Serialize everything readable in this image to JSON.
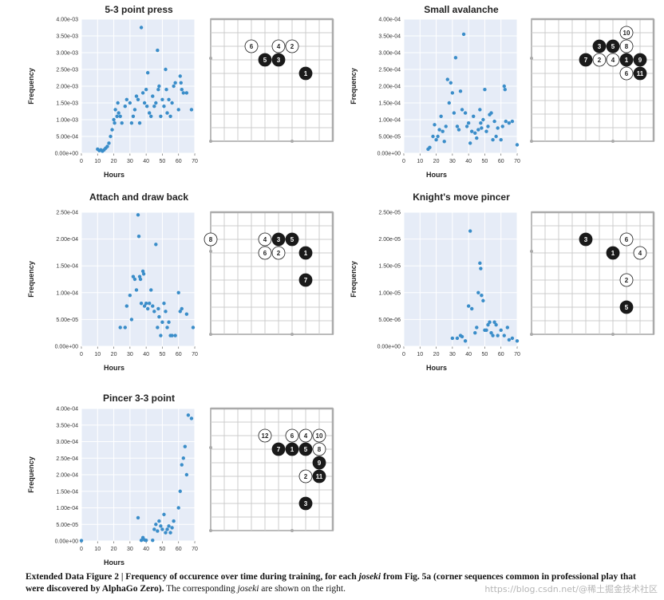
{
  "chart_data": [
    {
      "type": "scatter",
      "title": "5-3 point press",
      "xlabel": "Hours",
      "ylabel": "Frequency",
      "xlim": [
        0,
        70
      ],
      "ylim": [
        0,
        0.004
      ],
      "xticks": [
        "0",
        "10",
        "20",
        "30",
        "40",
        "50",
        "60",
        "70"
      ],
      "yticks": [
        "0.00e+00",
        "5.00e-04",
        "1.00e-03",
        "1.50e-03",
        "2.00e-03",
        "2.50e-03",
        "3.00e-03",
        "3.50e-03",
        "4.00e-03"
      ],
      "points": [
        [
          10,
          0.00012
        ],
        [
          11,
          8e-05
        ],
        [
          12,
          0.0001
        ],
        [
          13,
          6e-05
        ],
        [
          14,
          0.0001
        ],
        [
          15,
          0.00015
        ],
        [
          16,
          0.0002
        ],
        [
          17,
          0.0003
        ],
        [
          18,
          0.0005
        ],
        [
          19,
          0.0007
        ],
        [
          20,
          0.001
        ],
        [
          20.5,
          0.0009
        ],
        [
          21,
          0.0013
        ],
        [
          22,
          0.0011
        ],
        [
          22.5,
          0.0015
        ],
        [
          23,
          0.0012
        ],
        [
          24,
          0.0011
        ],
        [
          25,
          0.0009
        ],
        [
          27,
          0.0014
        ],
        [
          28,
          0.0016
        ],
        [
          30,
          0.0015
        ],
        [
          31,
          0.0009
        ],
        [
          32,
          0.0011
        ],
        [
          33,
          0.0013
        ],
        [
          34,
          0.0017
        ],
        [
          35,
          0.0016
        ],
        [
          36,
          0.0009
        ],
        [
          37,
          0.00375
        ],
        [
          38,
          0.0018
        ],
        [
          39,
          0.0015
        ],
        [
          40,
          0.0019
        ],
        [
          40.5,
          0.0014
        ],
        [
          41,
          0.0024
        ],
        [
          42,
          0.0012
        ],
        [
          43,
          0.0011
        ],
        [
          44,
          0.0017
        ],
        [
          45,
          0.0014
        ],
        [
          46,
          0.0015
        ],
        [
          47,
          0.00307
        ],
        [
          47.5,
          0.0019
        ],
        [
          48,
          0.002
        ],
        [
          49,
          0.0011
        ],
        [
          50,
          0.0016
        ],
        [
          51,
          0.0014
        ],
        [
          52,
          0.0025
        ],
        [
          52.5,
          0.0019
        ],
        [
          53,
          0.0012
        ],
        [
          54,
          0.0016
        ],
        [
          55,
          0.0011
        ],
        [
          56,
          0.0015
        ],
        [
          57,
          0.002
        ],
        [
          58,
          0.0021
        ],
        [
          60,
          0.0013
        ],
        [
          61,
          0.0023
        ],
        [
          61.5,
          0.0021
        ],
        [
          62,
          0.0019
        ],
        [
          63,
          0.0018
        ],
        [
          65,
          0.0018
        ],
        [
          68,
          0.0013
        ]
      ]
    },
    {
      "type": "scatter",
      "title": "Small avalanche",
      "xlabel": "Hours",
      "ylabel": "Frequency",
      "xlim": [
        0,
        70
      ],
      "ylim": [
        0,
        0.0004
      ],
      "xticks": [
        "0",
        "10",
        "20",
        "30",
        "40",
        "50",
        "60",
        "70"
      ],
      "yticks": [
        "0.00e+00",
        "5.00e-05",
        "1.00e-04",
        "1.50e-04",
        "2.00e-04",
        "2.50e-04",
        "3.00e-04",
        "3.50e-04",
        "4.00e-04"
      ],
      "points": [
        [
          15,
          1.2e-05
        ],
        [
          16,
          1.7e-05
        ],
        [
          18,
          5e-05
        ],
        [
          19,
          8.5e-05
        ],
        [
          20,
          4e-05
        ],
        [
          21,
          5e-05
        ],
        [
          22,
          7e-05
        ],
        [
          23,
          0.00011
        ],
        [
          24,
          6.5e-05
        ],
        [
          25,
          3.5e-05
        ],
        [
          26,
          8e-05
        ],
        [
          27,
          0.00022
        ],
        [
          28,
          0.00015
        ],
        [
          29,
          0.00021
        ],
        [
          30,
          0.00018
        ],
        [
          31,
          0.00012
        ],
        [
          32,
          0.000285
        ],
        [
          33,
          8e-05
        ],
        [
          34,
          7e-05
        ],
        [
          35,
          0.000185
        ],
        [
          36,
          0.00013
        ],
        [
          37,
          0.000355
        ],
        [
          38,
          0.00012
        ],
        [
          39,
          8e-05
        ],
        [
          40,
          9e-05
        ],
        [
          41,
          3e-05
        ],
        [
          42,
          6.5e-05
        ],
        [
          43,
          0.00011
        ],
        [
          44,
          6e-05
        ],
        [
          45,
          4.5e-05
        ],
        [
          46,
          7e-05
        ],
        [
          47,
          0.00013
        ],
        [
          47.5,
          9e-05
        ],
        [
          48,
          7.5e-05
        ],
        [
          49,
          0.0001
        ],
        [
          50,
          0.00019
        ],
        [
          51,
          6.5e-05
        ],
        [
          52,
          8e-05
        ],
        [
          53,
          0.000115
        ],
        [
          54,
          0.00012
        ],
        [
          55,
          4e-05
        ],
        [
          56,
          9.5e-05
        ],
        [
          57,
          5e-05
        ],
        [
          58,
          7.5e-05
        ],
        [
          60,
          4e-05
        ],
        [
          61,
          8e-05
        ],
        [
          62,
          0.0002
        ],
        [
          62.5,
          0.00019
        ],
        [
          63,
          9.5e-05
        ],
        [
          65,
          9e-05
        ],
        [
          67,
          9.5e-05
        ],
        [
          70,
          2.5e-05
        ]
      ]
    },
    {
      "type": "scatter",
      "title": "Attach and draw back",
      "xlabel": "Hours",
      "ylabel": "Frequency",
      "xlim": [
        0,
        70
      ],
      "ylim": [
        0,
        0.00025
      ],
      "xticks": [
        "0",
        "10",
        "20",
        "30",
        "40",
        "50",
        "60",
        "70"
      ],
      "yticks": [
        "0.00e+00",
        "5.00e-05",
        "1.00e-04",
        "1.50e-04",
        "2.00e-04",
        "2.50e-04"
      ],
      "points": [
        [
          24,
          3.5e-05
        ],
        [
          27,
          3.5e-05
        ],
        [
          28,
          7.5e-05
        ],
        [
          30,
          9.5e-05
        ],
        [
          31,
          5e-05
        ],
        [
          32,
          0.00013
        ],
        [
          33,
          0.000125
        ],
        [
          34,
          0.000105
        ],
        [
          35,
          0.000245
        ],
        [
          35.5,
          0.000205
        ],
        [
          36,
          0.00013
        ],
        [
          36.5,
          0.000125
        ],
        [
          37,
          8e-05
        ],
        [
          38,
          0.00014
        ],
        [
          38.5,
          0.000135
        ],
        [
          39,
          7.5e-05
        ],
        [
          40,
          8e-05
        ],
        [
          41,
          7e-05
        ],
        [
          42,
          8e-05
        ],
        [
          43,
          0.000105
        ],
        [
          44,
          7.5e-05
        ],
        [
          45,
          6.5e-05
        ],
        [
          46,
          0.00019
        ],
        [
          47,
          3.5e-05
        ],
        [
          47.5,
          7e-05
        ],
        [
          48,
          5.5e-05
        ],
        [
          49,
          2e-05
        ],
        [
          50,
          4.5e-05
        ],
        [
          51,
          8e-05
        ],
        [
          52,
          6.5e-05
        ],
        [
          53,
          3.5e-05
        ],
        [
          54,
          4.5e-05
        ],
        [
          55,
          2e-05
        ],
        [
          56,
          2e-05
        ],
        [
          58,
          2e-05
        ],
        [
          60,
          0.0001
        ],
        [
          61,
          6.5e-05
        ],
        [
          62,
          7e-05
        ],
        [
          65,
          6e-05
        ],
        [
          69,
          3.5e-05
        ]
      ]
    },
    {
      "type": "scatter",
      "title": "Knight's move pincer",
      "xlabel": "Hours",
      "ylabel": "Frequency",
      "xlim": [
        0,
        70
      ],
      "ylim": [
        0,
        2.5e-05
      ],
      "xticks": [
        "0",
        "10",
        "20",
        "30",
        "40",
        "50",
        "60",
        "70"
      ],
      "yticks": [
        "0.00e+00",
        "5.00e-06",
        "1.00e-05",
        "1.50e-05",
        "2.00e-05",
        "2.50e-05"
      ],
      "points": [
        [
          30,
          1.5e-06
        ],
        [
          33,
          1.5e-06
        ],
        [
          35,
          2e-06
        ],
        [
          36,
          1.8e-06
        ],
        [
          38,
          1e-06
        ],
        [
          40,
          7.5e-06
        ],
        [
          41,
          2.15e-05
        ],
        [
          42,
          7e-06
        ],
        [
          44,
          2.5e-06
        ],
        [
          45,
          3.5e-06
        ],
        [
          46,
          1e-05
        ],
        [
          47,
          1.55e-05
        ],
        [
          47.5,
          1.45e-05
        ],
        [
          48,
          9.5e-06
        ],
        [
          49,
          8.5e-06
        ],
        [
          50,
          3e-06
        ],
        [
          51,
          3e-06
        ],
        [
          52,
          4e-06
        ],
        [
          53,
          4.5e-06
        ],
        [
          54,
          2.5e-06
        ],
        [
          55,
          2e-06
        ],
        [
          56,
          4.5e-06
        ],
        [
          57,
          4e-06
        ],
        [
          58,
          2e-06
        ],
        [
          60,
          3e-06
        ],
        [
          62,
          2e-06
        ],
        [
          64,
          3.5e-06
        ],
        [
          65,
          1.2e-06
        ],
        [
          67,
          1.5e-06
        ],
        [
          70,
          1e-06
        ]
      ]
    },
    {
      "type": "scatter",
      "title": "Pincer 3-3 point",
      "xlabel": "Hours",
      "ylabel": "Frequency",
      "xlim": [
        0,
        70
      ],
      "ylim": [
        0,
        0.0004
      ],
      "xticks": [
        "0",
        "10",
        "20",
        "30",
        "40",
        "50",
        "60",
        "70"
      ],
      "yticks": [
        "0.00e+00",
        "5.00e-05",
        "1.00e-04",
        "1.50e-04",
        "2.00e-04",
        "2.50e-04",
        "3.00e-04",
        "3.50e-04",
        "4.00e-04"
      ],
      "points": [
        [
          0,
          1e-06
        ],
        [
          35,
          7e-05
        ],
        [
          37,
          2e-06
        ],
        [
          38,
          1e-05
        ],
        [
          39,
          3e-06
        ],
        [
          40,
          2e-06
        ],
        [
          44,
          2e-06
        ],
        [
          45,
          3.5e-05
        ],
        [
          46,
          5e-05
        ],
        [
          47,
          3e-05
        ],
        [
          48,
          6e-05
        ],
        [
          49,
          4.5e-05
        ],
        [
          50,
          3.5e-05
        ],
        [
          51,
          8e-05
        ],
        [
          52,
          2.5e-05
        ],
        [
          53,
          3.5e-05
        ],
        [
          54,
          4.5e-05
        ],
        [
          55,
          2.5e-05
        ],
        [
          56,
          4e-05
        ],
        [
          57,
          6e-05
        ],
        [
          60,
          0.0001
        ],
        [
          61,
          0.00015
        ],
        [
          62,
          0.00023
        ],
        [
          63,
          0.00025
        ],
        [
          64,
          0.000285
        ],
        [
          65,
          0.0002
        ],
        [
          66,
          0.00038
        ],
        [
          68,
          0.00037
        ]
      ]
    }
  ],
  "boards": [
    {
      "name": "5-3 point press",
      "stones": [
        {
          "col": 3,
          "row": 2,
          "color": "white",
          "label": "6"
        },
        {
          "col": 5,
          "row": 2,
          "color": "white",
          "label": "4"
        },
        {
          "col": 6,
          "row": 2,
          "color": "white",
          "label": "2"
        },
        {
          "col": 4,
          "row": 3,
          "color": "black",
          "label": "5"
        },
        {
          "col": 5,
          "row": 3,
          "color": "black",
          "label": "3"
        },
        {
          "col": 7,
          "row": 4,
          "color": "black",
          "label": "1"
        }
      ]
    },
    {
      "name": "Small avalanche",
      "stones": [
        {
          "col": 7,
          "row": 1,
          "color": "white",
          "label": "10"
        },
        {
          "col": 5,
          "row": 2,
          "color": "black",
          "label": "3"
        },
        {
          "col": 6,
          "row": 2,
          "color": "black",
          "label": "5"
        },
        {
          "col": 7,
          "row": 2,
          "color": "white",
          "label": "8"
        },
        {
          "col": 4,
          "row": 3,
          "color": "black",
          "label": "7"
        },
        {
          "col": 5,
          "row": 3,
          "color": "white",
          "label": "2"
        },
        {
          "col": 6,
          "row": 3,
          "color": "white",
          "label": "4"
        },
        {
          "col": 7,
          "row": 3,
          "color": "black",
          "label": "1"
        },
        {
          "col": 8,
          "row": 3,
          "color": "black",
          "label": "9"
        },
        {
          "col": 7,
          "row": 4,
          "color": "white",
          "label": "6"
        },
        {
          "col": 8,
          "row": 4,
          "color": "black",
          "label": "11"
        }
      ]
    },
    {
      "name": "Attach and draw back",
      "stones": [
        {
          "col": 0,
          "row": 2,
          "color": "white",
          "label": "8"
        },
        {
          "col": 4,
          "row": 2,
          "color": "white",
          "label": "4"
        },
        {
          "col": 5,
          "row": 2,
          "color": "black",
          "label": "3"
        },
        {
          "col": 6,
          "row": 2,
          "color": "black",
          "label": "5"
        },
        {
          "col": 4,
          "row": 3,
          "color": "white",
          "label": "6"
        },
        {
          "col": 5,
          "row": 3,
          "color": "white",
          "label": "2"
        },
        {
          "col": 7,
          "row": 3,
          "color": "black",
          "label": "1"
        },
        {
          "col": 7,
          "row": 5,
          "color": "black",
          "label": "7"
        }
      ]
    },
    {
      "name": "Knight's move pincer",
      "stones": [
        {
          "col": 4,
          "row": 2,
          "color": "black",
          "label": "3"
        },
        {
          "col": 7,
          "row": 2,
          "color": "white",
          "label": "6"
        },
        {
          "col": 6,
          "row": 3,
          "color": "black",
          "label": "1"
        },
        {
          "col": 8,
          "row": 3,
          "color": "white",
          "label": "4"
        },
        {
          "col": 7,
          "row": 5,
          "color": "white",
          "label": "2"
        },
        {
          "col": 7,
          "row": 7,
          "color": "black",
          "label": "5"
        }
      ]
    },
    {
      "name": "Pincer 3-3 point",
      "stones": [
        {
          "col": 4,
          "row": 2,
          "color": "white",
          "label": "12"
        },
        {
          "col": 6,
          "row": 2,
          "color": "white",
          "label": "6"
        },
        {
          "col": 7,
          "row": 2,
          "color": "white",
          "label": "4"
        },
        {
          "col": 8,
          "row": 2,
          "color": "white",
          "label": "10"
        },
        {
          "col": 5,
          "row": 3,
          "color": "black",
          "label": "7"
        },
        {
          "col": 6,
          "row": 3,
          "color": "black",
          "label": "1"
        },
        {
          "col": 7,
          "row": 3,
          "color": "black",
          "label": "5"
        },
        {
          "col": 8,
          "row": 3,
          "color": "white",
          "label": "8"
        },
        {
          "col": 8,
          "row": 4,
          "color": "black",
          "label": "9"
        },
        {
          "col": 7,
          "row": 5,
          "color": "white",
          "label": "2"
        },
        {
          "col": 8,
          "row": 5,
          "color": "black",
          "label": "11"
        },
        {
          "col": 7,
          "row": 7,
          "color": "black",
          "label": "3"
        }
      ]
    }
  ],
  "caption": {
    "label": "Extended Data Figure 2 | Frequency of occurence over time during training, for each ",
    "label_italic": "joseki",
    "label_rest": " from Fig. 5a (corner sequences common in professional play that were discovered by AlphaGo Zero).",
    "text": " The corresponding ",
    "text_italic": "joseki",
    "text_rest": " are shown on the right."
  },
  "watermark": "https://blog.csdn.net/@稀土掘金技术社区"
}
